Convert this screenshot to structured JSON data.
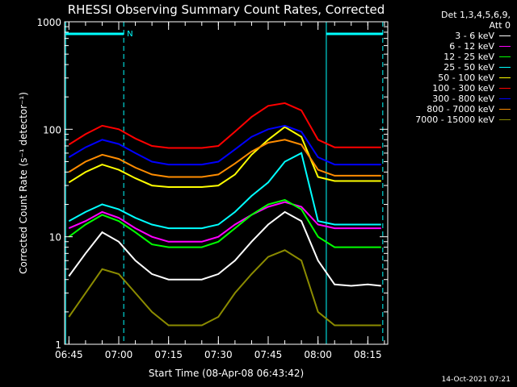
{
  "chart_data": {
    "type": "line",
    "title": "RHESSI Observing Summary Count Rates, Corrected",
    "xlabel": "Start Time (08-Apr-08 06:43:42)",
    "ylabel": "Corrected Count Rate (s⁻¹ detector⁻¹)",
    "xlim": [
      "06:43:42",
      "08:21:00"
    ],
    "ylim": [
      1,
      1000
    ],
    "yscale": "log",
    "x_ticks": [
      "06:45",
      "07:00",
      "07:15",
      "07:30",
      "07:45",
      "08:00",
      "08:15"
    ],
    "y_ticks": [
      "1",
      "10",
      "100",
      "1000"
    ],
    "x": [
      "06:45",
      "06:50",
      "06:55",
      "07:00",
      "07:05",
      "07:10",
      "07:15",
      "07:20",
      "07:25",
      "07:30",
      "07:35",
      "07:40",
      "07:45",
      "07:50",
      "07:55",
      "08:00",
      "08:05",
      "08:10",
      "08:15",
      "08:19"
    ],
    "series": [
      {
        "name": "3 - 6 keV",
        "color": "#ffffff",
        "values": [
          4.3,
          7,
          11,
          9,
          6,
          4.5,
          4,
          4,
          4,
          4.5,
          6,
          9,
          13,
          17,
          14,
          6,
          3.6,
          3.5,
          3.6,
          3.5
        ]
      },
      {
        "name": "6 - 12 keV",
        "color": "#ff00ff",
        "values": [
          12,
          14,
          17,
          15,
          12,
          10,
          9,
          9,
          9,
          10,
          13,
          16,
          19,
          21,
          19,
          13,
          12,
          12,
          12,
          12
        ]
      },
      {
        "name": "12 - 25 keV",
        "color": "#00ff00",
        "values": [
          10,
          13,
          16,
          14,
          11,
          8.5,
          8,
          8,
          8,
          9,
          12,
          16,
          20,
          22,
          18,
          10,
          8,
          8,
          8,
          8
        ]
      },
      {
        "name": "25 - 50 keV",
        "color": "#00ffff",
        "values": [
          14,
          17,
          20,
          18,
          15,
          13,
          12,
          12,
          12,
          13,
          17,
          24,
          32,
          50,
          60,
          14,
          13,
          13,
          13,
          13
        ]
      },
      {
        "name": "50 - 100 keV",
        "color": "#ffff00",
        "values": [
          32,
          40,
          47,
          42,
          35,
          30,
          29,
          29,
          29,
          30,
          38,
          58,
          80,
          105,
          85,
          36,
          33,
          33,
          33,
          33
        ]
      },
      {
        "name": "100 - 300 keV",
        "color": "#ff0000",
        "values": [
          72,
          90,
          108,
          100,
          82,
          70,
          67,
          67,
          67,
          70,
          95,
          130,
          165,
          175,
          150,
          80,
          68,
          68,
          68,
          68
        ]
      },
      {
        "name": "300 - 800 keV",
        "color": "#0000ff",
        "values": [
          55,
          68,
          80,
          73,
          60,
          50,
          47,
          47,
          47,
          50,
          65,
          85,
          100,
          108,
          95,
          55,
          47,
          47,
          47,
          47
        ]
      },
      {
        "name": "800 - 7000 keV",
        "color": "#ff8c00",
        "values": [
          40,
          50,
          58,
          53,
          44,
          38,
          36,
          36,
          36,
          38,
          48,
          62,
          75,
          80,
          72,
          42,
          37,
          37,
          37,
          37
        ]
      },
      {
        "name": "7000 - 15000 keV",
        "color": "#8b8b00",
        "values": [
          1.8,
          3,
          5,
          4.5,
          3,
          2,
          1.5,
          1.5,
          1.5,
          1.8,
          3,
          4.5,
          6.5,
          7.5,
          6,
          2,
          1.5,
          1.5,
          1.5,
          1.5
        ]
      }
    ],
    "legend_header": [
      "Det 1,3,4,5,6,9,",
      "Att 0"
    ],
    "annotations": {
      "flag_label": "N",
      "flag_color": "#00ffff"
    },
    "timestamp": "14-Oct-2021 07:21",
    "grid": false,
    "legend_position": "top-right"
  }
}
